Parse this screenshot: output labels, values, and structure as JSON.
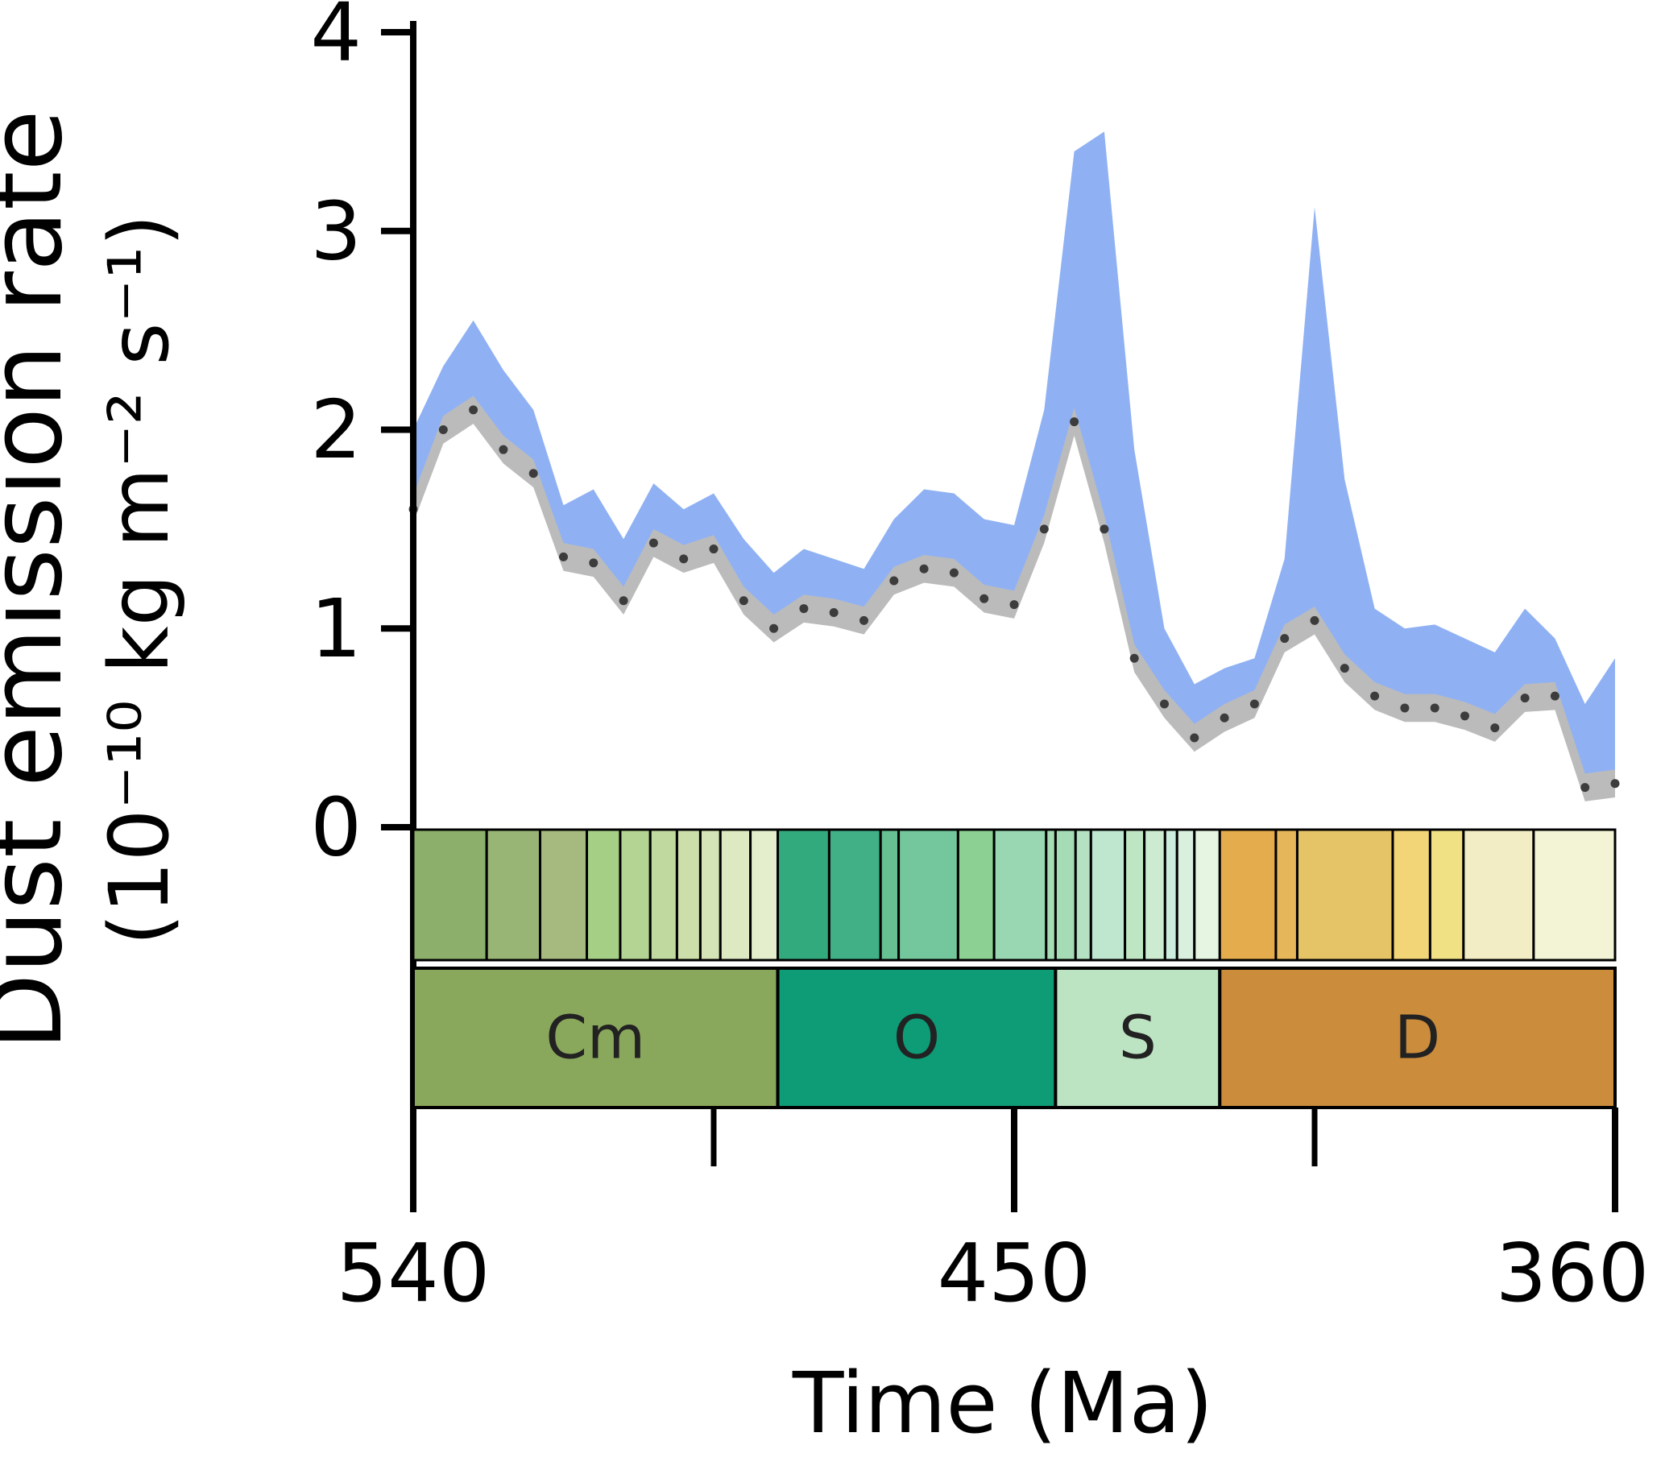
{
  "figure": {
    "ylabel_line1": "Dust emission rate",
    "ylabel_line2": "(10⁻¹⁰ kg m⁻² s⁻¹)",
    "xlabel": "Time (Ma)"
  },
  "chart_data": {
    "type": "area",
    "title": "",
    "xlabel": "Time (Ma)",
    "ylabel": "Dust emission rate (10⁻¹⁰ kg m⁻² s⁻¹)",
    "legend": "none",
    "grid": false,
    "x_axis": {
      "left_value": 540,
      "right_value": 360,
      "reversed": true,
      "unit": "Ma",
      "ticks": [
        540,
        450,
        360
      ],
      "minor_ticks": [
        495,
        405
      ]
    },
    "y_axis": {
      "min": 0,
      "max": 4,
      "ticks": [
        0,
        1,
        2,
        3,
        4
      ]
    },
    "colors": {
      "blue_band": "#8FB1F3",
      "gray_band": "#BBBBBB",
      "dot": "#3C3C3C",
      "axis": "#000000"
    },
    "gray_band_halfwidth": 0.07,
    "blue_band_gap": 0.05,
    "x": [
      540,
      535.5,
      531,
      526.5,
      522,
      517.5,
      513,
      508.5,
      504,
      499.5,
      495,
      490.5,
      486,
      481.5,
      477,
      472.5,
      468,
      463.5,
      459,
      454.5,
      450,
      445.5,
      441,
      436.5,
      432,
      427.5,
      423,
      418.5,
      414,
      409.5,
      405,
      400.5,
      396,
      391.5,
      387,
      382.5,
      378,
      373.5,
      369,
      364.5,
      360
    ],
    "mean": [
      1.6,
      2.0,
      2.1,
      1.9,
      1.78,
      1.36,
      1.33,
      1.14,
      1.43,
      1.35,
      1.4,
      1.14,
      1.0,
      1.1,
      1.08,
      1.04,
      1.24,
      1.3,
      1.28,
      1.15,
      1.12,
      1.5,
      2.04,
      1.5,
      0.85,
      0.62,
      0.45,
      0.55,
      0.62,
      0.95,
      1.04,
      0.8,
      0.66,
      0.6,
      0.6,
      0.56,
      0.5,
      0.65,
      0.66,
      0.2,
      0.22
    ],
    "upper": [
      2.0,
      2.32,
      2.55,
      2.3,
      2.1,
      1.62,
      1.7,
      1.45,
      1.73,
      1.6,
      1.68,
      1.45,
      1.28,
      1.4,
      1.35,
      1.3,
      1.55,
      1.7,
      1.68,
      1.55,
      1.52,
      2.1,
      3.4,
      3.5,
      1.9,
      1.0,
      0.72,
      0.8,
      0.85,
      1.35,
      3.12,
      1.75,
      1.1,
      1.0,
      1.02,
      0.95,
      0.88,
      1.1,
      0.95,
      0.62,
      0.85
    ],
    "periods": [
      {
        "label": "Cm",
        "start": 540,
        "end": 485.4,
        "color": "#8AA85C"
      },
      {
        "label": "O",
        "start": 485.4,
        "end": 443.8,
        "color": "#0E9C77"
      },
      {
        "label": "S",
        "start": 443.8,
        "end": 419.2,
        "color": "#BCE4C2"
      },
      {
        "label": "D",
        "start": 419.2,
        "end": 360,
        "color": "#CB8C3B"
      }
    ],
    "stages": [
      {
        "start": 540,
        "end": 529,
        "color": "#8CB06C"
      },
      {
        "start": 529,
        "end": 521,
        "color": "#99B575"
      },
      {
        "start": 521,
        "end": 514,
        "color": "#A6BA80"
      },
      {
        "start": 514,
        "end": 509,
        "color": "#A6CF86"
      },
      {
        "start": 509,
        "end": 504.5,
        "color": "#B3D492"
      },
      {
        "start": 504.5,
        "end": 500.5,
        "color": "#BFD99F"
      },
      {
        "start": 500.5,
        "end": 497,
        "color": "#CCDFAB"
      },
      {
        "start": 497,
        "end": 494,
        "color": "#D4E4B6"
      },
      {
        "start": 494,
        "end": 489.5,
        "color": "#DCE9C1"
      },
      {
        "start": 489.5,
        "end": 485.4,
        "color": "#E5EECC"
      },
      {
        "start": 485.4,
        "end": 477.7,
        "color": "#33A97E"
      },
      {
        "start": 477.7,
        "end": 470,
        "color": "#41B087"
      },
      {
        "start": 470,
        "end": 467.3,
        "color": "#66C092"
      },
      {
        "start": 467.3,
        "end": 458.4,
        "color": "#74C69C"
      },
      {
        "start": 458.4,
        "end": 453,
        "color": "#8CD094"
      },
      {
        "start": 453,
        "end": 445.2,
        "color": "#99D7B3"
      },
      {
        "start": 445.2,
        "end": 443.8,
        "color": "#A6DCB5"
      },
      {
        "start": 443.8,
        "end": 440.8,
        "color": "#A6DCB5"
      },
      {
        "start": 440.8,
        "end": 438.5,
        "color": "#B3E1C2"
      },
      {
        "start": 438.5,
        "end": 433.4,
        "color": "#BFE6CF"
      },
      {
        "start": 433.4,
        "end": 430.5,
        "color": "#BFE6C3"
      },
      {
        "start": 430.5,
        "end": 427.4,
        "color": "#CCEBD1"
      },
      {
        "start": 427.4,
        "end": 425.6,
        "color": "#CCECDD"
      },
      {
        "start": 425.6,
        "end": 423,
        "color": "#D9F0DF"
      },
      {
        "start": 423,
        "end": 419.2,
        "color": "#E6F5E1"
      },
      {
        "start": 419.2,
        "end": 410.8,
        "color": "#E5AC4D"
      },
      {
        "start": 410.8,
        "end": 407.6,
        "color": "#E5B75A"
      },
      {
        "start": 407.6,
        "end": 393.3,
        "color": "#E5C468"
      },
      {
        "start": 393.3,
        "end": 387.7,
        "color": "#F1D576"
      },
      {
        "start": 387.7,
        "end": 382.7,
        "color": "#F1E185"
      },
      {
        "start": 382.7,
        "end": 372.2,
        "color": "#F2EDC5"
      },
      {
        "start": 372.2,
        "end": 360,
        "color": "#F2F4D5"
      }
    ]
  }
}
